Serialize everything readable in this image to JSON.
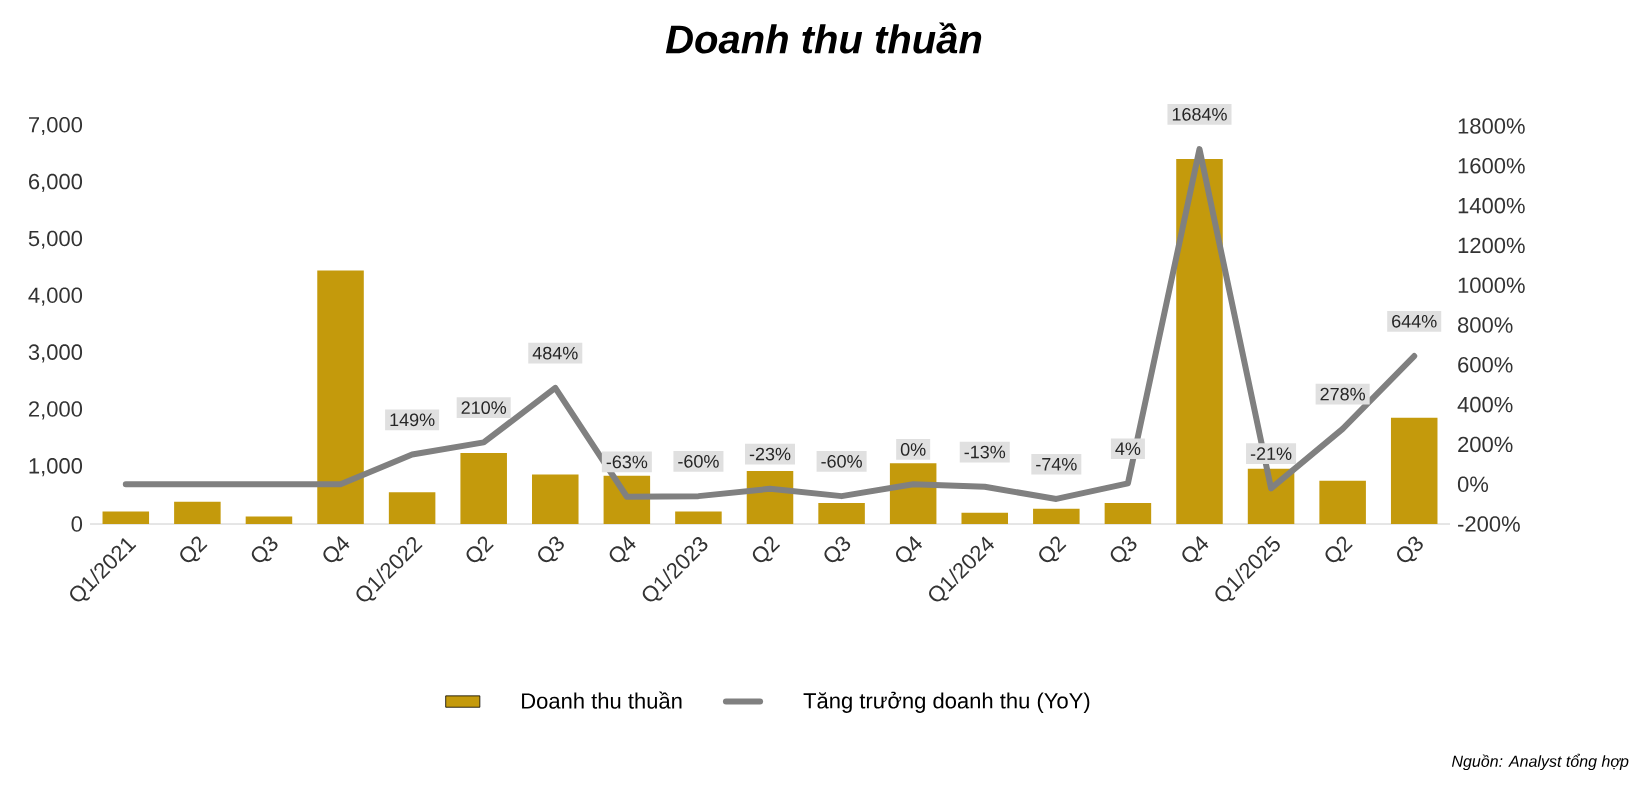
{
  "chart_data": {
    "type": "bar",
    "title": "Doanh thu thuần",
    "categories": [
      "Q1/2021",
      "Q2",
      "Q3",
      "Q4",
      "Q1/2022",
      "Q2",
      "Q3",
      "Q4",
      "Q1/2023",
      "Q2",
      "Q3",
      "Q4",
      "Q1/2024",
      "Q2",
      "Q3",
      "Q4",
      "Q1/2025",
      "Q2",
      "Q3"
    ],
    "series": [
      {
        "name": "Doanh thu thuần",
        "color": "#c49a0c",
        "values": [
          220,
          390,
          130,
          4460,
          560,
          1250,
          870,
          850,
          220,
          930,
          370,
          1070,
          200,
          270,
          370,
          6420,
          970,
          760,
          1870
        ]
      },
      {
        "name": "Tăng trưởng doanh thu (YoY)",
        "type": "line",
        "axis": "y2",
        "color": "#808080",
        "values": [
          0,
          0,
          0,
          0,
          149,
          210,
          484,
          -63,
          -60,
          -23,
          -60,
          0,
          -13,
          -74,
          4,
          1684,
          -21,
          278,
          644
        ],
        "value_labels": [
          null,
          null,
          null,
          null,
          "149%",
          "210%",
          "484%",
          "-63%",
          "-60%",
          "-23%",
          "-60%",
          "0%",
          "-13%",
          "-74%",
          "4%",
          "1684%",
          "-21%",
          "278%",
          "644%"
        ]
      }
    ],
    "ylim": [
      0,
      7000
    ],
    "yticks": [
      {
        "value": 0,
        "label": "0"
      },
      {
        "value": 1000,
        "label": "1,000"
      },
      {
        "value": 2000,
        "label": "2,000"
      },
      {
        "value": 3000,
        "label": "3,000"
      },
      {
        "value": 4000,
        "label": "4,000"
      },
      {
        "value": 5000,
        "label": "5,000"
      },
      {
        "value": 6000,
        "label": "6,000"
      },
      {
        "value": 7000,
        "label": "7,000"
      }
    ],
    "y2lim": [
      -200,
      1800
    ],
    "y2ticks": [
      {
        "value": -200,
        "label": "-200%"
      },
      {
        "value": 0,
        "label": "0%"
      },
      {
        "value": 200,
        "label": "200%"
      },
      {
        "value": 400,
        "label": "400%"
      },
      {
        "value": 600,
        "label": "600%"
      },
      {
        "value": 800,
        "label": "800%"
      },
      {
        "value": 1000,
        "label": "1000%"
      },
      {
        "value": 1200,
        "label": "1200%"
      },
      {
        "value": 1400,
        "label": "1400%"
      },
      {
        "value": 1600,
        "label": "1600%"
      },
      {
        "value": 1800,
        "label": "1800%"
      }
    ],
    "legend": "bottom",
    "annotations": [
      "Nguồn: Analyst tổng hợp"
    ]
  }
}
